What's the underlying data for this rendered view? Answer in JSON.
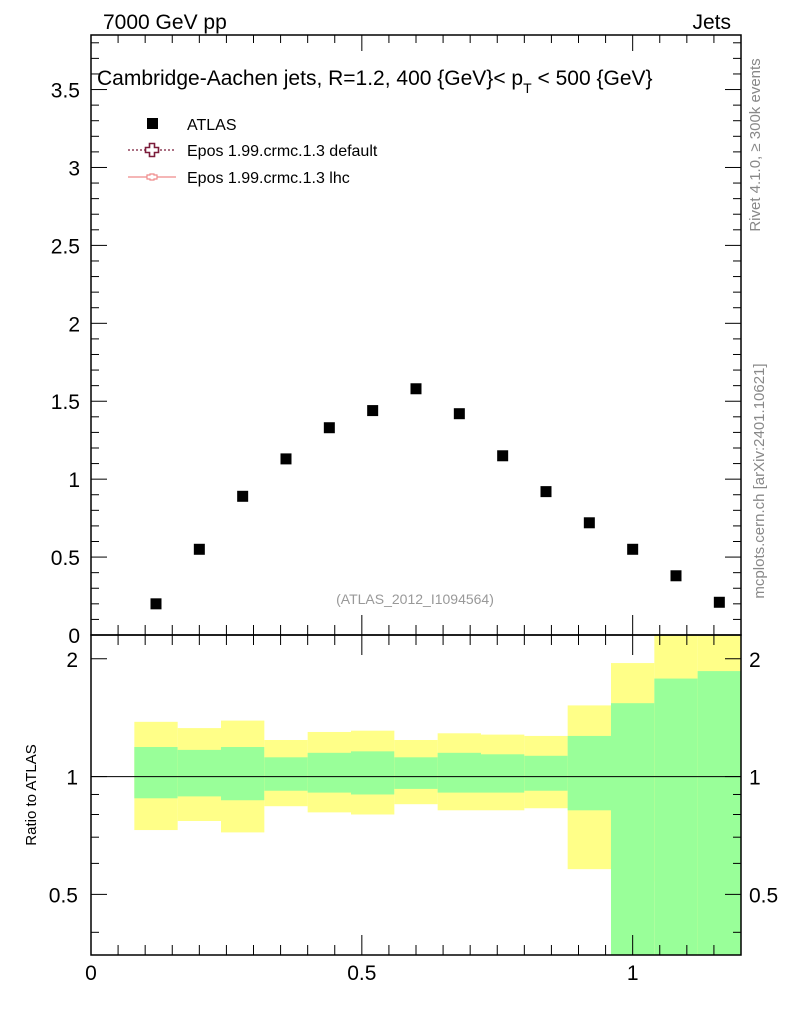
{
  "header": {
    "left": "7000 GeV pp",
    "right": "Jets"
  },
  "side_labels": {
    "upper": "Rivet 4.1.0, ≥ 300k events",
    "lower": "mcplots.cern.ch [arXiv:2401.10621]"
  },
  "colors": {
    "data": "#000000",
    "default_mc": "#7b1c3a",
    "lhc_mc": "#ef8a8a",
    "band_inner": "#99ff99",
    "band_outer": "#ffff88"
  },
  "chart_data": {
    "type": "scatter",
    "title": "Cambridge-Aachen jets, R=1.2,  400 {GeV}< p_T < 500 {GeV}",
    "title_parts": {
      "pre": "Cambridge-Aachen jets, R=1.2,  400 {GeV}< p",
      "sub": "T",
      "post": " < 500 {GeV}"
    },
    "watermark": "(ATLAS_2012_I1094564)",
    "legend": [
      {
        "name": "ATLAS",
        "marker": "square"
      },
      {
        "name": "Epos 1.99.crmc.1.3 default",
        "marker": "open-cross-dotted"
      },
      {
        "name": "Epos 1.99.crmc.1.3 lhc",
        "marker": "line-small"
      }
    ],
    "xlim": [
      0,
      1.2
    ],
    "ylim": [
      0,
      3.85
    ],
    "x_ticks": [
      {
        "v": 0,
        "label": "0"
      },
      {
        "v": 0.5,
        "label": "0.5"
      },
      {
        "v": 1,
        "label": "1"
      }
    ],
    "y_ticks": [
      {
        "v": 0,
        "label": "0"
      },
      {
        "v": 0.5,
        "label": "0.5"
      },
      {
        "v": 1,
        "label": "1"
      },
      {
        "v": 1.5,
        "label": "1.5"
      },
      {
        "v": 2,
        "label": "2"
      },
      {
        "v": 2.5,
        "label": "2.5"
      },
      {
        "v": 3,
        "label": "3"
      },
      {
        "v": 3.5,
        "label": "3.5"
      }
    ],
    "series": [
      {
        "name": "ATLAS",
        "x": [
          0.12,
          0.2,
          0.28,
          0.36,
          0.44,
          0.52,
          0.6,
          0.68,
          0.76,
          0.84,
          0.92,
          1.0,
          1.08,
          1.16
        ],
        "y": [
          0.2,
          0.55,
          0.89,
          1.13,
          1.33,
          1.44,
          1.58,
          1.42,
          1.15,
          0.92,
          0.72,
          0.55,
          0.38,
          0.21
        ]
      }
    ],
    "ratio": {
      "ylabel": "Ratio to ATLAS",
      "ylim": [
        0.35,
        2.3
      ],
      "y_ticks": [
        {
          "v": 0.5,
          "label": "0.5"
        },
        {
          "v": 1,
          "label": "1"
        },
        {
          "v": 2,
          "label": "2"
        }
      ],
      "bin_edges": [
        0.08,
        0.16,
        0.24,
        0.32,
        0.4,
        0.48,
        0.56,
        0.64,
        0.72,
        0.8,
        0.88,
        0.96,
        1.04,
        1.12,
        1.2
      ],
      "inner_lo": [
        0.88,
        0.89,
        0.87,
        0.92,
        0.91,
        0.9,
        0.93,
        0.91,
        0.91,
        0.92,
        0.82,
        0.35,
        0.35,
        0.35
      ],
      "inner_hi": [
        1.19,
        1.17,
        1.19,
        1.12,
        1.15,
        1.16,
        1.12,
        1.15,
        1.14,
        1.13,
        1.27,
        1.54,
        1.78,
        1.86
      ],
      "outer_lo": [
        0.73,
        0.77,
        0.72,
        0.84,
        0.81,
        0.8,
        0.85,
        0.82,
        0.82,
        0.83,
        0.58,
        0.54,
        0.35,
        0.35
      ],
      "outer_hi": [
        1.38,
        1.33,
        1.39,
        1.24,
        1.3,
        1.31,
        1.24,
        1.29,
        1.28,
        1.27,
        1.52,
        1.95,
        2.3,
        2.3
      ]
    }
  }
}
